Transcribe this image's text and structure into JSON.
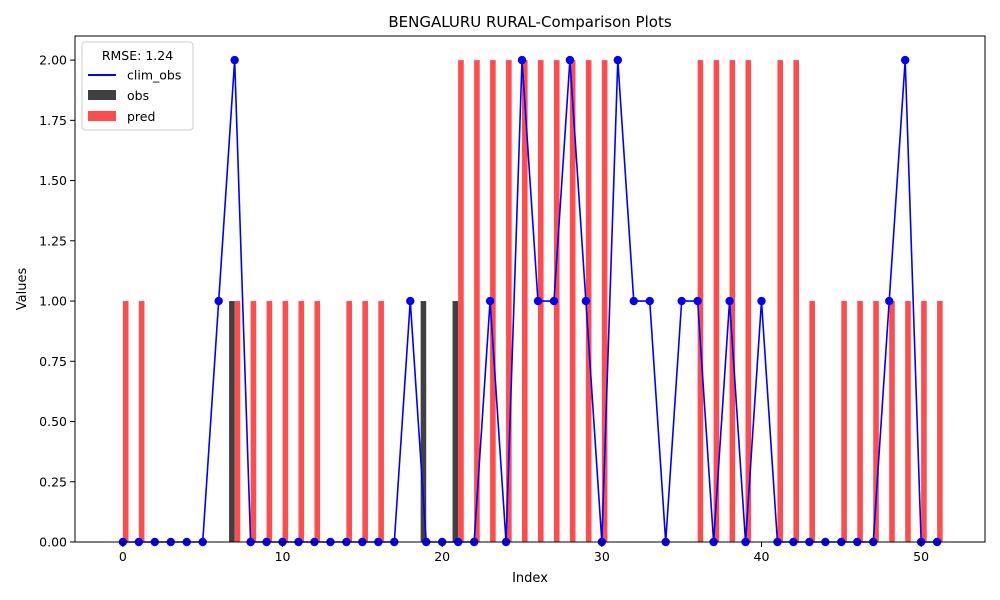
{
  "chart_data": {
    "type": "bar",
    "title": "BENGALURU RURAL-Comparison Plots",
    "xlabel": "Index",
    "ylabel": "Values",
    "xlim": [
      -3,
      54
    ],
    "ylim": [
      0,
      2.1
    ],
    "xticks": [
      0,
      10,
      20,
      30,
      40,
      50
    ],
    "yticks": [
      0.0,
      0.25,
      0.5,
      0.75,
      1.0,
      1.25,
      1.5,
      1.75,
      2.0
    ],
    "ytick_labels": [
      "0.00",
      "0.25",
      "0.50",
      "0.75",
      "1.00",
      "1.25",
      "1.50",
      "1.75",
      "2.00"
    ],
    "grid": false,
    "legend": {
      "title": "RMSE: 1.24",
      "placement": "top-left",
      "entries": [
        "clim_obs",
        "obs",
        "pred"
      ]
    },
    "colors": {
      "clim_obs": "#0000ff",
      "obs": "#404040",
      "pred": "#ff4d4d"
    },
    "x": [
      0,
      1,
      2,
      3,
      4,
      5,
      6,
      7,
      8,
      9,
      10,
      11,
      12,
      13,
      14,
      15,
      16,
      17,
      18,
      19,
      20,
      21,
      22,
      23,
      24,
      25,
      26,
      27,
      28,
      29,
      30,
      31,
      32,
      33,
      34,
      35,
      36,
      37,
      38,
      39,
      40,
      41,
      42,
      43,
      44,
      45,
      46,
      47,
      48,
      49,
      50,
      51
    ],
    "series": [
      {
        "name": "clim_obs",
        "kind": "line",
        "values": [
          0,
          0,
          0,
          0,
          0,
          0,
          1,
          2,
          0,
          0,
          0,
          0,
          0,
          0,
          0,
          0,
          0,
          0,
          1,
          0,
          0,
          0,
          0,
          1,
          0,
          2,
          1,
          1,
          2,
          1,
          0,
          2,
          1,
          1,
          0,
          1,
          1,
          0,
          1,
          0,
          1,
          0,
          0,
          0,
          0,
          0,
          0,
          0,
          1,
          2,
          0,
          0
        ]
      },
      {
        "name": "obs",
        "kind": "bar",
        "values": [
          0,
          0,
          0,
          0,
          0,
          0,
          0,
          1,
          0,
          0,
          0,
          0,
          0,
          0,
          0,
          0,
          0,
          0,
          0,
          1,
          0,
          1,
          0,
          0,
          0,
          0,
          0,
          0,
          0,
          0,
          0,
          0,
          0,
          0,
          0,
          0,
          0,
          0,
          0,
          0,
          0,
          0,
          0,
          0,
          0,
          0,
          0,
          0,
          0,
          0,
          0,
          0
        ]
      },
      {
        "name": "pred",
        "kind": "bar",
        "values": [
          1,
          1,
          0,
          0,
          0,
          0,
          0,
          1,
          1,
          1,
          1,
          1,
          1,
          0,
          1,
          1,
          1,
          0,
          0,
          0,
          0,
          2,
          2,
          2,
          2,
          2,
          2,
          2,
          2,
          2,
          2,
          0,
          0,
          0,
          0,
          0,
          2,
          2,
          2,
          2,
          0,
          2,
          2,
          1,
          0,
          1,
          1,
          1,
          1,
          1,
          1,
          1
        ]
      }
    ]
  }
}
